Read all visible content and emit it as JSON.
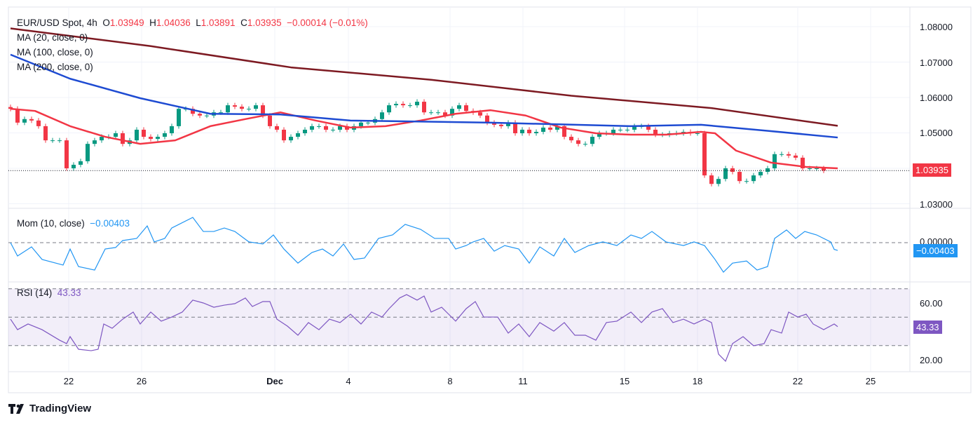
{
  "header": {
    "symbol": "EUR/USD Spot, 4h",
    "o_label": "O",
    "o": "1.03949",
    "h_label": "H",
    "h": "1.04036",
    "l_label": "L",
    "l": "1.03891",
    "c_label": "C",
    "c": "1.03935",
    "change": "−0.00014 (−0.01%)"
  },
  "legend": {
    "ma20": "MA (20, close, 0)",
    "ma100": "MA (100, close, 0)",
    "ma200": "MA (200, close, 0)",
    "mom": "Mom (10, close)",
    "mom_value": "−0.00403",
    "rsi": "RSI (14)",
    "rsi_value": "43.33"
  },
  "price_axis": [
    "1.08000",
    "1.07000",
    "1.06000",
    "1.05000",
    "1.03000"
  ],
  "price_badge": "1.03935",
  "mom_axis": [
    "0.00000"
  ],
  "mom_badge": "−0.00403",
  "rsi_axis": [
    "60.00",
    "20.00"
  ],
  "rsi_badge": "43.33",
  "brand": "TradingView",
  "colors": {
    "up": "#089981",
    "down": "#f23645",
    "ma20": "#f23645",
    "ma100": "#1e4bd2",
    "ma200": "#7d1a22",
    "mom": "#2196f3",
    "rsi": "#7e57c2"
  },
  "chart_data": [
    {
      "type": "candlestick",
      "title": "EUR/USD Spot, 4h",
      "ylim": [
        1.028,
        1.082
      ],
      "last": 1.03935,
      "x_ticks": [
        {
          "label": "22",
          "index": 8.3
        },
        {
          "label": "26",
          "index": 18.7
        },
        {
          "label": "Dec",
          "index": 37.7
        },
        {
          "label": "4",
          "index": 48.2
        },
        {
          "label": "8",
          "index": 62.7
        },
        {
          "label": "11",
          "index": 73.1
        },
        {
          "label": "15",
          "index": 87.6
        },
        {
          "label": "18",
          "index": 98
        },
        {
          "label": "22",
          "index": 112.3
        },
        {
          "label": "25",
          "index": 122.7
        }
      ],
      "closes": [
        1.0568,
        1.0529,
        1.0539,
        1.0535,
        1.0519,
        1.0479,
        1.0479,
        1.0479,
        1.04,
        1.041,
        1.042,
        1.0469,
        1.0479,
        1.0489,
        1.0489,
        1.0499,
        1.0469,
        1.0479,
        1.0509,
        1.0489,
        1.0483,
        1.0489,
        1.0499,
        1.0519,
        1.0568,
        1.0568,
        1.0554,
        1.0549,
        1.0549,
        1.0558,
        1.0558,
        1.0578,
        1.0574,
        1.0568,
        1.0568,
        1.0578,
        1.0549,
        1.0519,
        1.0509,
        1.0479,
        1.0489,
        1.0499,
        1.0509,
        1.0519,
        1.0519,
        1.0509,
        1.0509,
        1.0519,
        1.0509,
        1.0519,
        1.0529,
        1.0529,
        1.0539,
        1.0558,
        1.0578,
        1.0582,
        1.0578,
        1.0578,
        1.0588,
        1.0558,
        1.0558,
        1.0558,
        1.0549,
        1.0568,
        1.0578,
        1.0562,
        1.0558,
        1.0549,
        1.0529,
        1.0523,
        1.0519,
        1.0529,
        1.0499,
        1.0509,
        1.0499,
        1.0503,
        1.0515,
        1.0509,
        1.0519,
        1.0489,
        1.0479,
        1.0469,
        1.0469,
        1.0489,
        1.0499,
        1.0499,
        1.0509,
        1.0509,
        1.0509,
        1.0519,
        1.0519,
        1.0509,
        1.0495,
        1.0495,
        1.0499,
        1.0499,
        1.0503,
        1.0499,
        1.0499,
        1.038,
        1.0356,
        1.037,
        1.04,
        1.039,
        1.0364,
        1.0364,
        1.038,
        1.039,
        1.04,
        1.044,
        1.044,
        1.0436,
        1.043,
        1.04,
        1.04,
        1.04,
        1.03935
      ],
      "series": [
        {
          "name": "MA (20, close, 0)",
          "points": [
            [
              0,
              1.0568
            ],
            [
              3.5,
              1.0562
            ],
            [
              8.5,
              1.0519
            ],
            [
              13.5,
              1.0489
            ],
            [
              18.5,
              1.0469
            ],
            [
              23.5,
              1.0479
            ],
            [
              28.5,
              1.0519
            ],
            [
              33.5,
              1.0539
            ],
            [
              38.5,
              1.0558
            ],
            [
              43.5,
              1.0535
            ],
            [
              48.5,
              1.0515
            ],
            [
              53.5,
              1.0519
            ],
            [
              58.5,
              1.0535
            ],
            [
              63.5,
              1.0554
            ],
            [
              68.5,
              1.0564
            ],
            [
              73.5,
              1.0549
            ],
            [
              78.5,
              1.0515
            ],
            [
              83.5,
              1.0499
            ],
            [
              88.5,
              1.0495
            ],
            [
              93.5,
              1.0495
            ],
            [
              98.5,
              1.0503
            ],
            [
              100.5,
              1.0499
            ],
            [
              103.5,
              1.045
            ],
            [
              108.5,
              1.0416
            ],
            [
              113.5,
              1.0404
            ],
            [
              118,
              1.04
            ]
          ]
        },
        {
          "name": "MA (100, close, 0)",
          "points": [
            [
              0,
              1.0721
            ],
            [
              8.5,
              1.0653
            ],
            [
              18.5,
              1.0598
            ],
            [
              28.5,
              1.0554
            ],
            [
              38.5,
              1.0552
            ],
            [
              48.5,
              1.0535
            ],
            [
              68.5,
              1.0529
            ],
            [
              88.5,
              1.0519
            ],
            [
              98.5,
              1.0523
            ],
            [
              108.5,
              1.0505
            ],
            [
              118,
              1.0487
            ]
          ]
        },
        {
          "name": "MA (200, close, 0)",
          "points": [
            [
              0,
              1.0795
            ],
            [
              20,
              1.0745
            ],
            [
              40,
              1.0685
            ],
            [
              60,
              1.065
            ],
            [
              80,
              1.0605
            ],
            [
              100,
              1.057
            ],
            [
              118,
              1.052
            ]
          ]
        }
      ]
    },
    {
      "type": "line",
      "title": "Mom (10, close)",
      "ylim": [
        -0.0165,
        0.017
      ],
      "last": -0.00403,
      "points": [
        [
          0,
          0
        ],
        [
          1,
          -0.0069
        ],
        [
          3,
          -0.0022
        ],
        [
          4.5,
          -0.0087
        ],
        [
          7.5,
          -0.0116
        ],
        [
          8.5,
          -0.0033
        ],
        [
          9.7,
          -0.0124
        ],
        [
          12,
          -0.0142
        ],
        [
          13.5,
          -0.0033
        ],
        [
          15,
          -0.0025
        ],
        [
          16,
          0.0011
        ],
        [
          18,
          0.0022
        ],
        [
          19.5,
          0.0087
        ],
        [
          20.5,
          0.0004
        ],
        [
          22,
          0.0022
        ],
        [
          23,
          0.0076
        ],
        [
          26,
          0.0131
        ],
        [
          27.5,
          0.0058
        ],
        [
          29,
          0.0058
        ],
        [
          30.5,
          0.0076
        ],
        [
          32,
          0.0058
        ],
        [
          34,
          0.0004
        ],
        [
          36,
          -0.0007
        ],
        [
          37.5,
          0.004
        ],
        [
          39,
          -0.0033
        ],
        [
          41,
          -0.0106
        ],
        [
          43,
          -0.0051
        ],
        [
          44.5,
          -0.0033
        ],
        [
          46,
          -0.0069
        ],
        [
          47.5,
          -0.0007
        ],
        [
          49,
          -0.0087
        ],
        [
          50.5,
          -0.008
        ],
        [
          52.5,
          0.0022
        ],
        [
          54.5,
          0.004
        ],
        [
          56.3,
          0.0095
        ],
        [
          58.5,
          0.0069
        ],
        [
          60.5,
          0.0022
        ],
        [
          62.5,
          0.0022
        ],
        [
          63.5,
          -0.0033
        ],
        [
          65,
          -0.0015
        ],
        [
          66,
          0.0004
        ],
        [
          67.5,
          0.0022
        ],
        [
          69,
          -0.0044
        ],
        [
          70.5,
          -0.0015
        ],
        [
          72.5,
          -0.0033
        ],
        [
          74,
          -0.0106
        ],
        [
          75.5,
          -0.0022
        ],
        [
          77.5,
          -0.0069
        ],
        [
          79,
          0.0022
        ],
        [
          80.5,
          -0.0051
        ],
        [
          82.5,
          -0.0015
        ],
        [
          84.5,
          0.0004
        ],
        [
          86.5,
          -0.0015
        ],
        [
          88.5,
          0.004
        ],
        [
          90,
          0.0022
        ],
        [
          91.5,
          0.0058
        ],
        [
          93.5,
          0.0004
        ],
        [
          96,
          -0.0015
        ],
        [
          97.5,
          0.0004
        ],
        [
          99,
          -0.0015
        ],
        [
          100.5,
          -0.0087
        ],
        [
          101.7,
          -0.0153
        ],
        [
          103,
          -0.0106
        ],
        [
          105,
          -0.0095
        ],
        [
          106.5,
          -0.0142
        ],
        [
          108,
          -0.0124
        ],
        [
          109,
          0.0022
        ],
        [
          110.7,
          0.0066
        ],
        [
          112,
          0.0022
        ],
        [
          113.3,
          0.0058
        ],
        [
          115,
          0.004
        ],
        [
          117,
          0.0004
        ],
        [
          117.5,
          -0.0035
        ],
        [
          118,
          -0.00403
        ]
      ]
    },
    {
      "type": "line",
      "title": "RSI (14)",
      "ylim": [
        10,
        77
      ],
      "band": [
        30,
        70
      ],
      "midline": 50,
      "last": 43.33,
      "points": [
        [
          0,
          48.6
        ],
        [
          1,
          41.2
        ],
        [
          2.5,
          45.2
        ],
        [
          4.5,
          41.2
        ],
        [
          7,
          33.8
        ],
        [
          8,
          31.4
        ],
        [
          8.5,
          36.3
        ],
        [
          9.7,
          27.4
        ],
        [
          11.5,
          26.4
        ],
        [
          12.5,
          27.4
        ],
        [
          13.3,
          45.2
        ],
        [
          14.5,
          42.2
        ],
        [
          16,
          48.6
        ],
        [
          17.5,
          53.6
        ],
        [
          18.5,
          45.2
        ],
        [
          20,
          53.6
        ],
        [
          21.5,
          47.2
        ],
        [
          23,
          50.1
        ],
        [
          24.5,
          53.6
        ],
        [
          26,
          62
        ],
        [
          27.5,
          60
        ],
        [
          29,
          57
        ],
        [
          30.5,
          58.5
        ],
        [
          32,
          59.5
        ],
        [
          33.5,
          63.5
        ],
        [
          34.5,
          57.5
        ],
        [
          36,
          61
        ],
        [
          37,
          61
        ],
        [
          38,
          48.6
        ],
        [
          39.5,
          43.7
        ],
        [
          41,
          37.3
        ],
        [
          42.5,
          46.2
        ],
        [
          44,
          41.2
        ],
        [
          45.5,
          48.6
        ],
        [
          47,
          46.2
        ],
        [
          48.5,
          52.1
        ],
        [
          50,
          45.2
        ],
        [
          51.5,
          53.6
        ],
        [
          53,
          50.1
        ],
        [
          54,
          56
        ],
        [
          55.5,
          63.5
        ],
        [
          56.5,
          65.9
        ],
        [
          58,
          62
        ],
        [
          59,
          64.9
        ],
        [
          60,
          53.6
        ],
        [
          61.5,
          57
        ],
        [
          63.5,
          47.2
        ],
        [
          65,
          56
        ],
        [
          66.3,
          61
        ],
        [
          67.5,
          50.1
        ],
        [
          69.5,
          50.1
        ],
        [
          71,
          38.8
        ],
        [
          72.5,
          45.2
        ],
        [
          74,
          36.3
        ],
        [
          75.5,
          46.2
        ],
        [
          77.5,
          40.2
        ],
        [
          79,
          46.2
        ],
        [
          80.5,
          37.3
        ],
        [
          82,
          37.3
        ],
        [
          83.5,
          33.8
        ],
        [
          85,
          46.2
        ],
        [
          86.5,
          47.2
        ],
        [
          88.5,
          53.6
        ],
        [
          90,
          46.2
        ],
        [
          91.5,
          53.6
        ],
        [
          93,
          56
        ],
        [
          94.5,
          46.2
        ],
        [
          96,
          48.6
        ],
        [
          97.5,
          45.2
        ],
        [
          99,
          48.6
        ],
        [
          100,
          46.2
        ],
        [
          101,
          24
        ],
        [
          102,
          19
        ],
        [
          103,
          31.4
        ],
        [
          104.5,
          36.3
        ],
        [
          106,
          29.9
        ],
        [
          107.5,
          31.4
        ],
        [
          108.5,
          41.2
        ],
        [
          110,
          38.8
        ],
        [
          111,
          53.6
        ],
        [
          112.3,
          50.1
        ],
        [
          113.5,
          52.1
        ],
        [
          114.5,
          45.2
        ],
        [
          116,
          41.2
        ],
        [
          117.5,
          45.2
        ],
        [
          118,
          43.33
        ]
      ]
    }
  ]
}
